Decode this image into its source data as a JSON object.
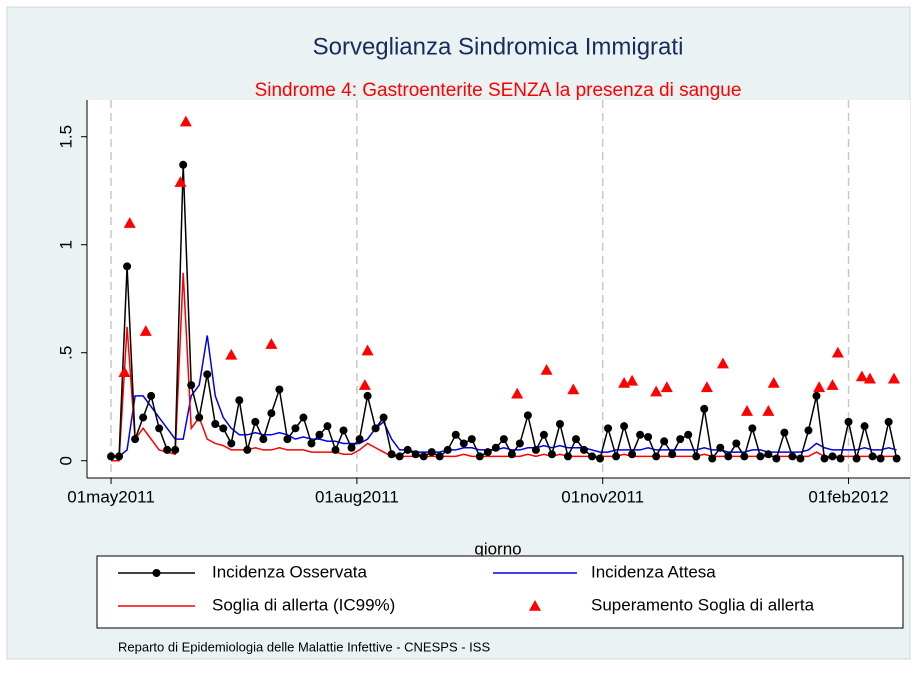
{
  "chart_data": {
    "type": "line",
    "title": "Sorveglianza Sindromica Immigrati",
    "subtitle": "Sindrome 4: Gastroenterite SENZA la presenza di sangue",
    "x_label": "giorno",
    "caption": "Reparto di Epidemiologia delle Malattie Infettive - CNESPS - ISS",
    "legend": "bottom",
    "grid": true,
    "xlim": [
      "2011-04-22",
      "2012-02-24"
    ],
    "xticks": [
      {
        "value": "2011-05-01",
        "label": "01may2011"
      },
      {
        "value": "2011-08-01",
        "label": "01aug2011"
      },
      {
        "value": "2011-11-01",
        "label": "01nov2011"
      },
      {
        "value": "2012-02-01",
        "label": "01feb2012"
      }
    ],
    "ylim": [
      -0.08,
      1.67
    ],
    "yticks": [
      0,
      {
        "value": 0.5,
        "label": ".5"
      },
      1,
      1.5
    ],
    "x": [
      "2011-05-01",
      "2011-05-04",
      "2011-05-07",
      "2011-05-10",
      "2011-05-13",
      "2011-05-16",
      "2011-05-19",
      "2011-05-22",
      "2011-05-25",
      "2011-05-28",
      "2011-05-31",
      "2011-06-03",
      "2011-06-06",
      "2011-06-09",
      "2011-06-12",
      "2011-06-15",
      "2011-06-18",
      "2011-06-21",
      "2011-06-24",
      "2011-06-27",
      "2011-06-30",
      "2011-07-03",
      "2011-07-06",
      "2011-07-09",
      "2011-07-12",
      "2011-07-15",
      "2011-07-18",
      "2011-07-21",
      "2011-07-24",
      "2011-07-27",
      "2011-07-30",
      "2011-08-02",
      "2011-08-05",
      "2011-08-08",
      "2011-08-11",
      "2011-08-14",
      "2011-08-17",
      "2011-08-20",
      "2011-08-23",
      "2011-08-26",
      "2011-08-29",
      "2011-09-01",
      "2011-09-04",
      "2011-09-07",
      "2011-09-10",
      "2011-09-13",
      "2011-09-16",
      "2011-09-19",
      "2011-09-22",
      "2011-09-25",
      "2011-09-28",
      "2011-10-01",
      "2011-10-04",
      "2011-10-07",
      "2011-10-10",
      "2011-10-13",
      "2011-10-16",
      "2011-10-19",
      "2011-10-22",
      "2011-10-25",
      "2011-10-28",
      "2011-10-31",
      "2011-11-03",
      "2011-11-06",
      "2011-11-09",
      "2011-11-12",
      "2011-11-15",
      "2011-11-18",
      "2011-11-21",
      "2011-11-24",
      "2011-11-27",
      "2011-11-30",
      "2011-12-03",
      "2011-12-06",
      "2011-12-09",
      "2011-12-12",
      "2011-12-15",
      "2011-12-18",
      "2011-12-21",
      "2011-12-24",
      "2011-12-27",
      "2011-12-30",
      "2012-01-02",
      "2012-01-05",
      "2012-01-08",
      "2012-01-11",
      "2012-01-14",
      "2012-01-17",
      "2012-01-20",
      "2012-01-23",
      "2012-01-26",
      "2012-01-29",
      "2012-02-01",
      "2012-02-04",
      "2012-02-07",
      "2012-02-10",
      "2012-02-13",
      "2012-02-16",
      "2012-02-19"
    ],
    "series": [
      {
        "name": "Incidenza Attesa",
        "color": "#0000ee",
        "marker": "none",
        "line": true,
        "values": [
          0.02,
          0.02,
          0.05,
          0.3,
          0.3,
          0.25,
          0.2,
          0.15,
          0.1,
          0.1,
          0.3,
          0.35,
          0.58,
          0.3,
          0.2,
          0.15,
          0.12,
          0.12,
          0.13,
          0.12,
          0.12,
          0.13,
          0.12,
          0.1,
          0.11,
          0.1,
          0.1,
          0.09,
          0.09,
          0.08,
          0.08,
          0.08,
          0.1,
          0.15,
          0.18,
          0.1,
          0.05,
          0.05,
          0.04,
          0.04,
          0.04,
          0.04,
          0.05,
          0.05,
          0.06,
          0.06,
          0.05,
          0.05,
          0.05,
          0.06,
          0.05,
          0.05,
          0.06,
          0.06,
          0.07,
          0.06,
          0.07,
          0.06,
          0.06,
          0.06,
          0.05,
          0.04,
          0.04,
          0.05,
          0.05,
          0.05,
          0.05,
          0.06,
          0.05,
          0.05,
          0.05,
          0.05,
          0.05,
          0.05,
          0.06,
          0.05,
          0.05,
          0.04,
          0.04,
          0.04,
          0.05,
          0.05,
          0.04,
          0.04,
          0.04,
          0.04,
          0.04,
          0.05,
          0.08,
          0.06,
          0.05,
          0.05,
          0.05,
          0.05,
          0.06,
          0.05,
          0.05,
          0.06,
          0.05
        ]
      },
      {
        "name": "Soglia di allerta (IC99%)",
        "color": "#ff0000",
        "marker": "none",
        "line": true,
        "values": [
          0.0,
          0.0,
          0.62,
          0.1,
          0.15,
          0.1,
          0.05,
          0.04,
          0.03,
          0.87,
          0.15,
          0.2,
          0.1,
          0.08,
          0.07,
          0.05,
          0.05,
          0.05,
          0.06,
          0.05,
          0.05,
          0.06,
          0.05,
          0.05,
          0.05,
          0.04,
          0.04,
          0.04,
          0.04,
          0.03,
          0.03,
          0.05,
          0.08,
          0.06,
          0.04,
          0.02,
          0.02,
          0.02,
          0.02,
          0.02,
          0.02,
          0.02,
          0.02,
          0.02,
          0.03,
          0.02,
          0.02,
          0.02,
          0.02,
          0.02,
          0.02,
          0.02,
          0.03,
          0.02,
          0.03,
          0.02,
          0.03,
          0.02,
          0.02,
          0.02,
          0.02,
          0.02,
          0.02,
          0.02,
          0.03,
          0.02,
          0.02,
          0.02,
          0.02,
          0.02,
          0.02,
          0.02,
          0.02,
          0.02,
          0.03,
          0.02,
          0.02,
          0.02,
          0.02,
          0.02,
          0.02,
          0.02,
          0.02,
          0.02,
          0.02,
          0.02,
          0.02,
          0.02,
          0.04,
          0.02,
          0.02,
          0.02,
          0.02,
          0.02,
          0.02,
          0.02,
          0.02,
          0.02,
          0.02
        ]
      },
      {
        "name": "Incidenza Osservata",
        "color": "#000000",
        "marker": "circle",
        "line": true,
        "values": [
          0.02,
          0.02,
          0.9,
          0.1,
          0.2,
          0.3,
          0.15,
          0.05,
          0.05,
          1.37,
          0.35,
          0.2,
          0.4,
          0.17,
          0.15,
          0.08,
          0.28,
          0.05,
          0.18,
          0.1,
          0.22,
          0.33,
          0.1,
          0.15,
          0.2,
          0.08,
          0.12,
          0.16,
          0.05,
          0.14,
          0.06,
          0.1,
          0.3,
          0.15,
          0.2,
          0.03,
          0.02,
          0.05,
          0.03,
          0.02,
          0.04,
          0.02,
          0.05,
          0.12,
          0.08,
          0.1,
          0.02,
          0.04,
          0.06,
          0.1,
          0.03,
          0.08,
          0.21,
          0.05,
          0.12,
          0.03,
          0.17,
          0.02,
          0.1,
          0.05,
          0.02,
          0.01,
          0.15,
          0.02,
          0.16,
          0.03,
          0.12,
          0.11,
          0.02,
          0.09,
          0.03,
          0.1,
          0.12,
          0.02,
          0.24,
          0.01,
          0.06,
          0.02,
          0.08,
          0.02,
          0.15,
          0.02,
          0.03,
          0.01,
          0.13,
          0.02,
          0.01,
          0.14,
          0.3,
          0.01,
          0.02,
          0.01,
          0.18,
          0.01,
          0.16,
          0.02,
          0.01,
          0.18,
          0.01
        ]
      },
      {
        "name": "Superamento Soglia di allerta",
        "color": "#ff0000",
        "marker": "triangle",
        "line": false,
        "x": [
          "2011-05-06",
          "2011-05-08",
          "2011-05-14",
          "2011-05-27",
          "2011-05-29",
          "2011-06-15",
          "2011-06-30",
          "2011-08-04",
          "2011-08-05",
          "2011-09-30",
          "2011-10-11",
          "2011-10-21",
          "2011-11-09",
          "2011-11-12",
          "2011-11-21",
          "2011-11-25",
          "2011-12-10",
          "2011-12-16",
          "2011-12-25",
          "2012-01-02",
          "2012-01-04",
          "2012-01-21",
          "2012-01-26",
          "2012-01-28",
          "2012-02-06",
          "2012-02-09",
          "2012-02-18"
        ],
        "values": [
          0.41,
          1.1,
          0.6,
          1.29,
          1.57,
          0.49,
          0.54,
          0.35,
          0.51,
          0.31,
          0.42,
          0.33,
          0.36,
          0.37,
          0.32,
          0.34,
          0.34,
          0.45,
          0.23,
          0.23,
          0.36,
          0.34,
          0.35,
          0.5,
          0.39,
          0.38,
          0.38
        ]
      }
    ]
  }
}
